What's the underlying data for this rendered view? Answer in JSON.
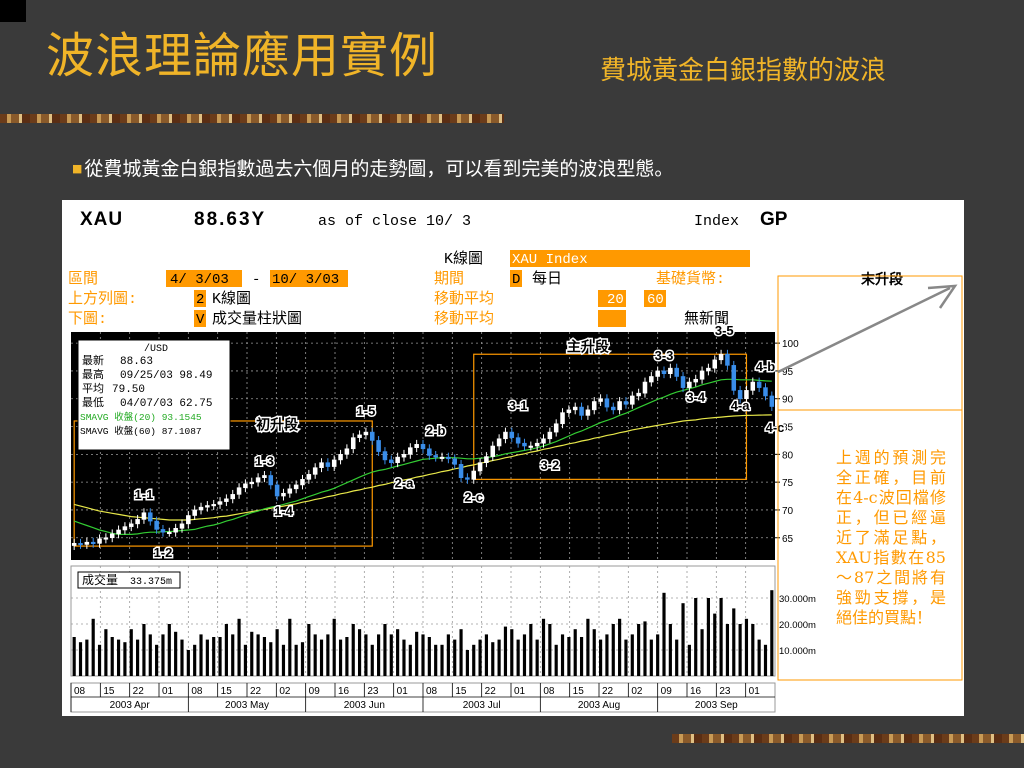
{
  "slide": {
    "title": "波浪理論應用實例",
    "subtitle": "費城黃金白銀指數的波浪",
    "bullet": "從費城黃金白銀指數過去六個月的走勢圖，可以看到完美的波浪型態。"
  },
  "terminal": {
    "symbol": "XAU",
    "price": "88.63Y",
    "asof": "as of close 10/ 3",
    "index_label": "Index",
    "gp": "GP",
    "kchart_label": "K線圖",
    "kchart_value": "XAU Index",
    "range_label": "區間",
    "range_start": "4/ 3/03",
    "range_dash": "-",
    "range_end": "10/ 3/03",
    "period_label": "期間",
    "period_code": "D",
    "period_value": "每日",
    "currency_label": "基礎貨幣:",
    "upper_label": "上方列圖:",
    "upper_code": "2",
    "upper_value": "K線圖",
    "ma_label_1": "移動平均",
    "ma_1": "20",
    "ma_2": "60",
    "lower_label": "下圖:",
    "lower_code": "V",
    "lower_value": "成交量柱狀圖",
    "ma_label_2": "移動平均",
    "news": "無新聞"
  },
  "legend_box": {
    "unit": "/USD",
    "rows": [
      {
        "label": "最新",
        "value": "88.63"
      },
      {
        "label": "最高",
        "value": "09/25/03 98.49"
      },
      {
        "label": "平均",
        "value": "79.50"
      },
      {
        "label": "最低",
        "value": "04/07/03 62.75"
      }
    ],
    "smavg1": "SMAVG 收盤(20) 93.1545",
    "smavg2": "SMAVG 收盤(60) 87.1087"
  },
  "volume_box": {
    "label": "成交量",
    "value": "33.375m"
  },
  "prediction": "上週的預測完全正確，目前在4-c波回檔修正，但已經逼近了滿足點，XAU指數在85～87之間將有強勁支撐，是絕佳的買點！",
  "colors": {
    "accent": "#f0b428",
    "orange": "#ff9900",
    "ma20": "#33cc33",
    "ma60": "#e8e84a",
    "candle_up": "#ffffff",
    "candle_down": "#3a8eea"
  },
  "chart_data": {
    "type": "candlestick",
    "title": "",
    "y_ticks": [
      65,
      70,
      75,
      80,
      85,
      90,
      95,
      100
    ],
    "ylim": [
      61,
      102
    ],
    "volume_ticks": [
      "10.000m",
      "20.000m",
      "30.000m"
    ],
    "volume_tick_values": [
      10,
      20,
      30
    ],
    "volume_ylim": [
      0,
      40
    ],
    "day_labels": [
      "08",
      "15",
      "22",
      "01",
      "08",
      "15",
      "22",
      "02",
      "09",
      "16",
      "23",
      "01",
      "08",
      "15",
      "22",
      "01",
      "08",
      "15",
      "22",
      "02",
      "09",
      "16",
      "23",
      "01"
    ],
    "month_labels": [
      "2003 Apr",
      "2003 May",
      "2003 Jun",
      "2003 Jul",
      "2003 Aug",
      "2003 Sep"
    ],
    "close": [
      64.0,
      63.8,
      64.2,
      64.0,
      64.8,
      65.0,
      65.7,
      66.4,
      67.0,
      67.5,
      68.3,
      69.5,
      68.0,
      66.5,
      66.0,
      66.0,
      66.7,
      67.5,
      69.0,
      70.0,
      70.5,
      70.8,
      71.0,
      71.5,
      72.0,
      72.8,
      74.0,
      74.7,
      75.0,
      75.8,
      76.2,
      74.5,
      72.5,
      73.0,
      73.8,
      74.5,
      75.5,
      76.4,
      77.6,
      78.5,
      77.8,
      79.0,
      80.0,
      81.0,
      83.0,
      83.5,
      84.0,
      82.5,
      80.5,
      79.0,
      78.5,
      79.5,
      80.0,
      81.2,
      81.8,
      81.0,
      79.8,
      79.5,
      79.5,
      79.2,
      78.2,
      75.8,
      75.5,
      77.0,
      78.5,
      79.6,
      81.5,
      82.8,
      84.0,
      83.0,
      82.0,
      81.5,
      81.5,
      82.0,
      82.8,
      84.0,
      85.5,
      87.5,
      88.0,
      88.5,
      87.0,
      88.0,
      89.5,
      90.0,
      88.5,
      88.0,
      89.5,
      89.0,
      90.5,
      91.0,
      93.0,
      94.0,
      95.0,
      94.5,
      95.5,
      94.0,
      92.0,
      93.0,
      93.5,
      95.0,
      95.5,
      97.0,
      98.0,
      96.0,
      91.5,
      90.0,
      91.5,
      93.0,
      92.0,
      90.5,
      88.6
    ],
    "volume": [
      15,
      13,
      14,
      22,
      12,
      18,
      15,
      14,
      13,
      18,
      14,
      20,
      16,
      12,
      16,
      20,
      17,
      14,
      10,
      12,
      16,
      14,
      15,
      15,
      20,
      16,
      22,
      12,
      17,
      16,
      15,
      13,
      18,
      12,
      22,
      12,
      13,
      20,
      16,
      14,
      16,
      22,
      14,
      15,
      20,
      18,
      16,
      12,
      16,
      20,
      16,
      18,
      14,
      12,
      17,
      16,
      15,
      12,
      12,
      16,
      14,
      18,
      10,
      12,
      14,
      16,
      13,
      14,
      19,
      18,
      14,
      16,
      20,
      14,
      22,
      20,
      12,
      16,
      15,
      18,
      15,
      22,
      18,
      14,
      16,
      20,
      22,
      14,
      16,
      20,
      21,
      14,
      16,
      32,
      20,
      14,
      28,
      12,
      30,
      18,
      30,
      24,
      30,
      20,
      26,
      20,
      22,
      20,
      14,
      12,
      33
    ],
    "ma20": [
      68,
      67.6,
      67.2,
      66.8,
      66.4,
      66.1,
      65.8,
      65.6,
      65.6,
      65.6,
      65.7,
      65.9,
      66.0,
      66.0,
      66.1,
      66.1,
      66.2,
      66.3,
      66.4,
      66.5,
      66.8,
      67.1,
      67.3,
      67.6,
      68.0,
      68.3,
      68.7,
      69.1,
      69.5,
      69.8,
      70.2,
      70.5,
      70.7,
      71.0,
      71.3,
      71.6,
      72.0,
      72.4,
      72.8,
      73.2,
      73.5,
      73.9,
      74.4,
      74.9,
      75.4,
      75.9,
      76.4,
      76.8,
      77.1,
      77.3,
      77.6,
      77.9,
      78.2,
      78.5,
      78.8,
      79.1,
      79.2,
      79.3,
      79.4,
      79.4,
      79.4,
      79.3,
      79.2,
      79.2,
      79.3,
      79.4,
      79.6,
      79.8,
      80.1,
      80.3,
      80.5,
      80.7,
      80.9,
      81.2,
      81.5,
      81.9,
      82.3,
      82.8,
      83.3,
      83.8,
      84.2,
      84.7,
      85.2,
      85.7,
      86.1,
      86.5,
      87.0,
      87.4,
      87.9,
      88.4,
      88.9,
      89.4,
      89.9,
      90.3,
      90.8,
      91.2,
      91.5,
      91.8,
      92.1,
      92.5,
      92.8,
      93.1,
      93.4,
      93.5,
      93.5,
      93.4,
      93.4,
      93.4,
      93.3,
      93.2,
      93.15
    ],
    "ma60": [
      71,
      70.7,
      70.4,
      70.1,
      69.8,
      69.6,
      69.4,
      69.2,
      69.0,
      68.8,
      68.7,
      68.6,
      68.5,
      68.4,
      68.3,
      68.2,
      68.2,
      68.2,
      68.2,
      68.3,
      68.4,
      68.5,
      68.6,
      68.8,
      68.9,
      69.1,
      69.3,
      69.5,
      69.7,
      69.9,
      70.1,
      70.3,
      70.5,
      70.7,
      70.9,
      71.1,
      71.4,
      71.6,
      71.9,
      72.1,
      72.4,
      72.6,
      72.9,
      73.1,
      73.4,
      73.6,
      73.9,
      74.1,
      74.4,
      74.6,
      74.9,
      75.1,
      75.4,
      75.6,
      75.9,
      76.1,
      76.4,
      76.6,
      76.9,
      77.1,
      77.4,
      77.6,
      77.9,
      78.1,
      78.4,
      78.6,
      78.9,
      79.1,
      79.4,
      79.6,
      79.9,
      80.1,
      80.4,
      80.6,
      80.9,
      81.1,
      81.4,
      81.6,
      81.9,
      82.1,
      82.4,
      82.6,
      82.9,
      83.1,
      83.4,
      83.6,
      83.9,
      84.1,
      84.4,
      84.6,
      84.8,
      85.0,
      85.2,
      85.4,
      85.6,
      85.8,
      86.0,
      86.1,
      86.2,
      86.4,
      86.5,
      86.6,
      86.7,
      86.8,
      86.9,
      86.95,
      87.0,
      87.02,
      87.05,
      87.08,
      87.1
    ],
    "wave_labels": [
      {
        "text": "1-1",
        "x": 11,
        "y": 72
      },
      {
        "text": "1-2",
        "x": 14,
        "y": 61.5
      },
      {
        "text": "1-3",
        "x": 30,
        "y": 78
      },
      {
        "text": "1-4",
        "x": 33,
        "y": 69
      },
      {
        "text": "1-5",
        "x": 46,
        "y": 87
      },
      {
        "text": "2-a",
        "x": 52,
        "y": 74
      },
      {
        "text": "2-b",
        "x": 57,
        "y": 83.5
      },
      {
        "text": "2-c",
        "x": 63,
        "y": 71.5
      },
      {
        "text": "3-1",
        "x": 70,
        "y": 88
      },
      {
        "text": "3-2",
        "x": 75,
        "y": 77.3
      },
      {
        "text": "3-3",
        "x": 93,
        "y": 97
      },
      {
        "text": "3-4",
        "x": 98,
        "y": 89.5
      },
      {
        "text": "3-5",
        "x": 102.5,
        "y": 101.5
      },
      {
        "text": "4-b",
        "x": 109,
        "y": 95
      },
      {
        "text": "4-a",
        "x": 105,
        "y": 88
      },
      {
        "text": "4-c",
        "x": 110.5,
        "y": 84
      }
    ],
    "segment_labels": [
      {
        "text": "初升段",
        "x": 32,
        "y": 84.5
      },
      {
        "text": "主升段",
        "x": 81,
        "y": 98.5
      },
      {
        "text": "末升段"
      }
    ],
    "segment_boxes": [
      {
        "x0": 0,
        "x1": 47,
        "y0": 63.5,
        "y1": 86
      },
      {
        "x0": 63,
        "x1": 106,
        "y0": 75.5,
        "y1": 98
      }
    ]
  }
}
